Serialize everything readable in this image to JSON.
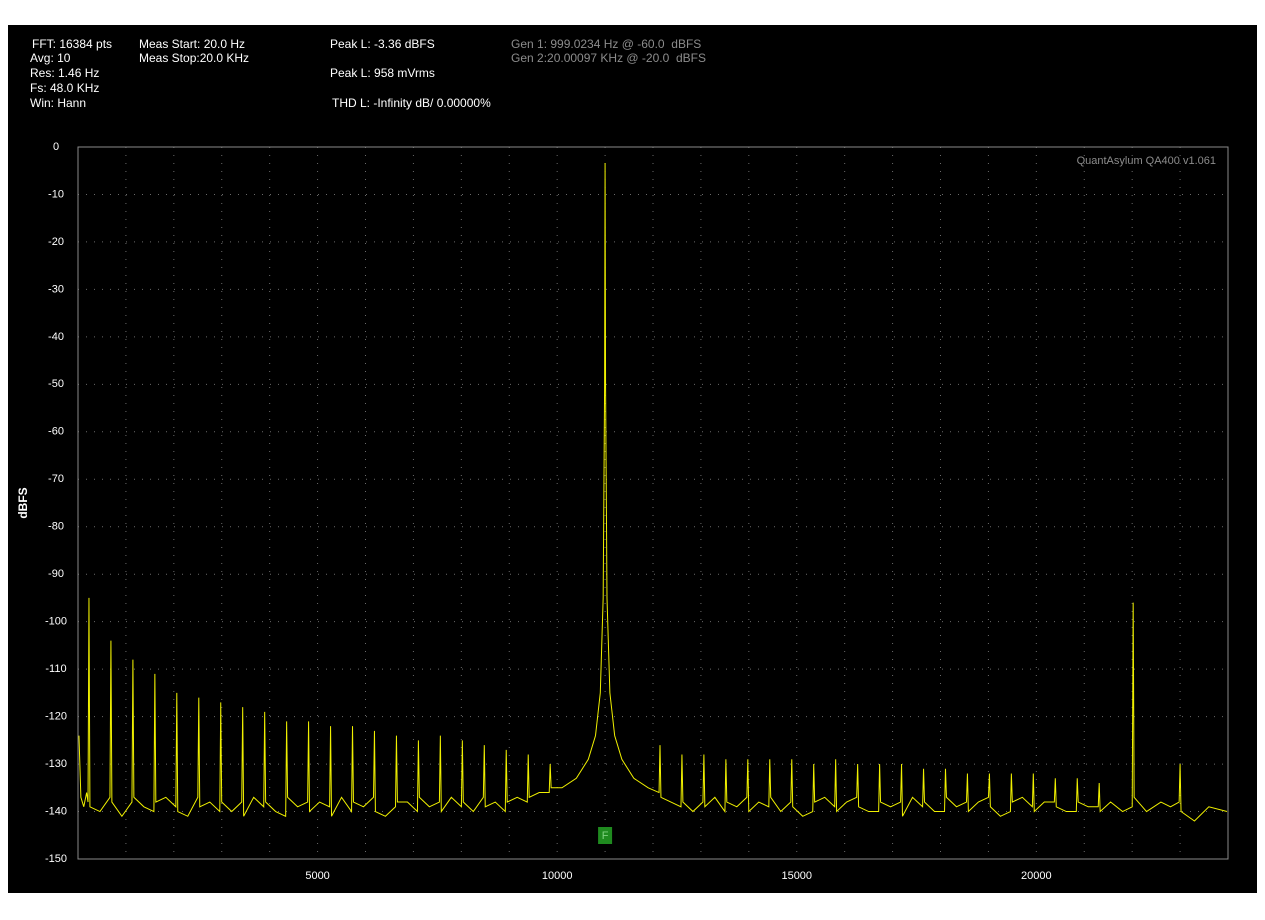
{
  "chart_data": {
    "type": "line",
    "annotations": [
      "FFT: 16384 pts",
      "Avg: 10",
      "Res: 1.46 Hz",
      "Fs: 48.0 KHz",
      "Win: Hann",
      "Meas Start: 20.0 Hz",
      "Meas Stop:20.0 KHz",
      "Peak L: -3.36 dBFS",
      "Peak L: 958 mVrms",
      "THD L: -Infinity dB/ 0.00000%",
      "Gen 1: 999.0234 Hz @ -60.0  dBFS",
      "Gen 2:20.00097 KHz @ -20.0  dBFS"
    ],
    "watermark": "QuantAsylum QA400 v1.061",
    "ylabel": "dBFS",
    "color": "#f0f000",
    "grid": true,
    "xlim": [
      0,
      24000
    ],
    "xticks": [
      5000,
      10000,
      15000,
      20000
    ],
    "xgrid": [
      1000,
      2000,
      3000,
      4000,
      5000,
      6000,
      7000,
      8000,
      9000,
      10000,
      11000,
      12000,
      13000,
      14000,
      15000,
      16000,
      17000,
      18000,
      19000,
      20000,
      21000,
      22000,
      23000
    ],
    "ylim": [
      -150,
      0
    ],
    "yticks": [
      0,
      -10,
      -20,
      -30,
      -40,
      -50,
      -60,
      -70,
      -80,
      -90,
      -100,
      -110,
      -120,
      -130,
      -140,
      -150
    ],
    "marker": {
      "label": "F",
      "x": 11000
    },
    "x": [
      20,
      60,
      120,
      180,
      209,
      229,
      249,
      458,
      667,
      687,
      707,
      916,
      1126,
      1146,
      1166,
      1375,
      1584,
      1604,
      1624,
      1833,
      2042,
      2062,
      2082,
      2291,
      2501,
      2521,
      2541,
      2750,
      2959,
      2979,
      2999,
      3208,
      3417,
      3437,
      3457,
      3666,
      3876,
      3896,
      3916,
      4125,
      4334,
      4354,
      4374,
      4583,
      4792,
      4812,
      4832,
      5041,
      5251,
      5271,
      5291,
      5500,
      5709,
      5729,
      5749,
      5958,
      6167,
      6187,
      6207,
      6416,
      6626,
      6646,
      6666,
      6875,
      7084,
      7104,
      7124,
      7333,
      7542,
      7562,
      7582,
      7791,
      8001,
      8021,
      8041,
      8250,
      8459,
      8479,
      8499,
      8708,
      8917,
      8937,
      8957,
      9166,
      9376,
      9396,
      9416,
      9625,
      9834,
      9854,
      9874,
      10100,
      10400,
      10650,
      10800,
      10900,
      10960,
      10990,
      11000,
      11010,
      11040,
      11100,
      11200,
      11350,
      11600,
      11900,
      12126,
      12146,
      12166,
      12375,
      12584,
      12604,
      12624,
      12833,
      13042,
      13062,
      13082,
      13291,
      13501,
      13521,
      13541,
      13750,
      13959,
      13979,
      13999,
      14208,
      14417,
      14437,
      14457,
      14666,
      14876,
      14896,
      14916,
      15125,
      15334,
      15354,
      15374,
      15583,
      15792,
      15812,
      15832,
      16041,
      16251,
      16271,
      16291,
      16500,
      16709,
      16729,
      16749,
      16958,
      17167,
      17187,
      17207,
      17416,
      17626,
      17646,
      17666,
      17875,
      18084,
      18104,
      18124,
      18333,
      18542,
      18562,
      18582,
      18791,
      19001,
      19021,
      19041,
      19250,
      19459,
      19479,
      19499,
      19708,
      19917,
      19937,
      19957,
      20166,
      20376,
      20396,
      20416,
      20625,
      20834,
      20854,
      20874,
      21083,
      21292,
      21312,
      21332,
      21550,
      21800,
      22001,
      22021,
      22041,
      22300,
      22600,
      22800,
      22980,
      23000,
      23020,
      23300,
      23600,
      23979
    ],
    "values": [
      -124,
      -137,
      -139,
      -136,
      -138,
      -95,
      -139,
      -140,
      -137,
      -104,
      -138,
      -141,
      -138,
      -108,
      -137,
      -139,
      -140,
      -111,
      -138,
      -137,
      -139,
      -115,
      -140,
      -141,
      -137,
      -116,
      -139,
      -138,
      -140,
      -117,
      -138,
      -140,
      -138,
      -118,
      -141,
      -137,
      -139,
      -119,
      -138,
      -140,
      -141,
      -121,
      -137,
      -139,
      -138,
      -121,
      -140,
      -138,
      -139,
      -122,
      -141,
      -137,
      -140,
      -122,
      -138,
      -139,
      -137,
      -123,
      -140,
      -141,
      -139,
      -124,
      -138,
      -138,
      -140,
      -125,
      -137,
      -139,
      -138,
      -124,
      -140,
      -137,
      -139,
      -125,
      -138,
      -140,
      -137,
      -126,
      -139,
      -138,
      -140,
      -127,
      -138,
      -137,
      -138,
      -128,
      -137,
      -136,
      -136,
      -130,
      -135,
      -135,
      -133,
      -129,
      -124,
      -115,
      -95,
      -50,
      -3.36,
      -50,
      -95,
      -115,
      -124,
      -129,
      -133,
      -135,
      -136,
      -126,
      -137,
      -138,
      -139,
      -128,
      -138,
      -140,
      -138,
      -128,
      -139,
      -137,
      -140,
      -129,
      -138,
      -139,
      -137,
      -129,
      -140,
      -138,
      -139,
      -129,
      -137,
      -140,
      -138,
      -129,
      -139,
      -141,
      -140,
      -130,
      -138,
      -137,
      -139,
      -129,
      -140,
      -138,
      -137,
      -130,
      -139,
      -140,
      -140,
      -130,
      -138,
      -139,
      -138,
      -130,
      -141,
      -137,
      -139,
      -131,
      -138,
      -140,
      -140,
      -131,
      -137,
      -139,
      -138,
      -132,
      -140,
      -138,
      -137,
      -132,
      -139,
      -141,
      -140,
      -132,
      -138,
      -137,
      -139,
      -132,
      -140,
      -138,
      -138,
      -133,
      -139,
      -140,
      -140,
      -133,
      -138,
      -139,
      -139,
      -134,
      -140,
      -138,
      -140,
      -139,
      -96,
      -137,
      -140,
      -138,
      -139,
      -138,
      -130,
      -140,
      -142,
      -139,
      -140
    ]
  }
}
